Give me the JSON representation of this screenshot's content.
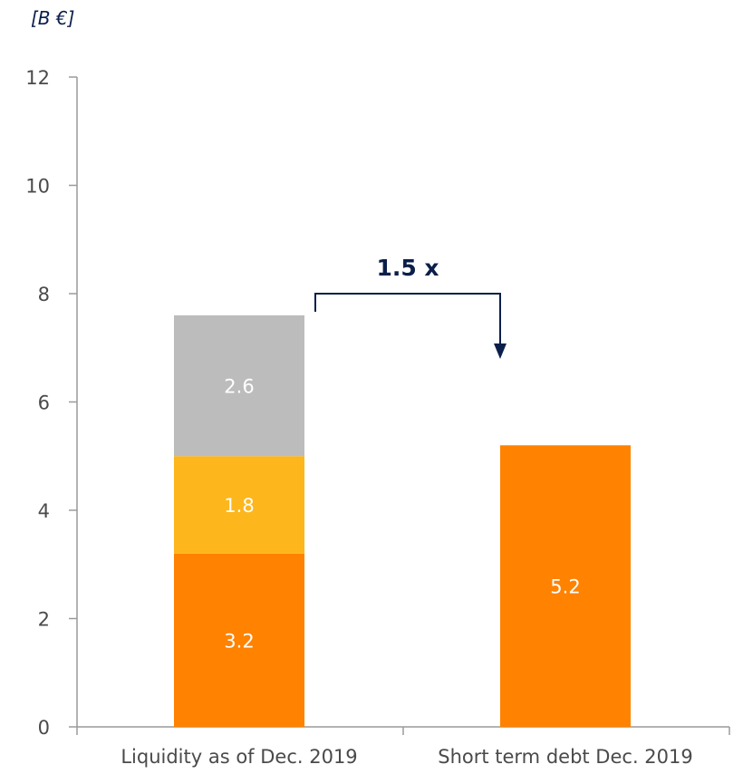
{
  "chart_data": {
    "type": "bar",
    "stacked": true,
    "unit": "[B €]",
    "categories": [
      "Liquidity as of Dec. 2019",
      "Short term debt Dec. 2019"
    ],
    "stacks": [
      {
        "category": "Liquidity as of Dec. 2019",
        "segments": [
          {
            "value": 3.2,
            "label": "3.2",
            "color": "#ff8200"
          },
          {
            "value": 1.8,
            "label": "1.8",
            "color": "#fdb61c"
          },
          {
            "value": 2.6,
            "label": "2.6",
            "color": "#bcbcbc"
          }
        ]
      },
      {
        "category": "Short term debt Dec. 2019",
        "segments": [
          {
            "value": 5.2,
            "label": "5.2",
            "color": "#ff8200"
          }
        ]
      }
    ],
    "ylim": [
      0,
      12
    ],
    "yticks": [
      0,
      2,
      4,
      6,
      8,
      10,
      12
    ],
    "title": "",
    "xlabel": "",
    "ylabel": "",
    "annotation": {
      "text": "1.5 x",
      "color": "#0b1f4a"
    },
    "grid": false,
    "colors": {
      "axis": "#9a9a9a",
      "tick_text": "#4a4a4a"
    }
  }
}
